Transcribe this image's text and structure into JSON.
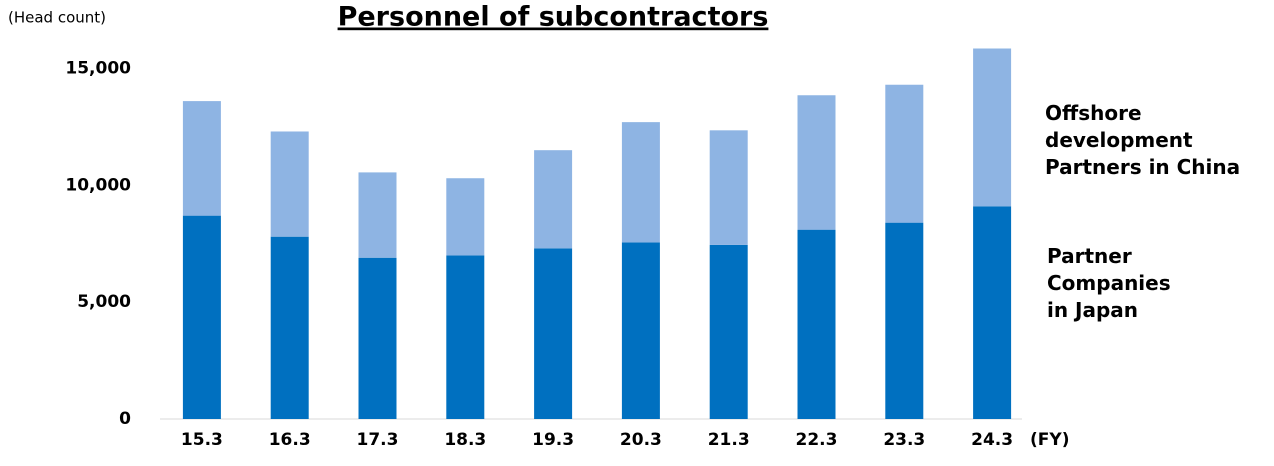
{
  "chart_data": {
    "type": "stacked_bar",
    "title": "Personnel of subcontractors",
    "y_label": "(Head count)",
    "x_label": "(FY)",
    "categories": [
      "15.3",
      "16.3",
      "17.3",
      "18.3",
      "19.3",
      "20.3",
      "21.3",
      "22.3",
      "23.3",
      "24.3"
    ],
    "series": [
      {
        "name": "Partner Companies in Japan",
        "color": "#0070c0",
        "values": [
          8700,
          7800,
          6900,
          7000,
          7300,
          7550,
          7450,
          8100,
          8400,
          9100
        ]
      },
      {
        "name": "Offshore development Partners in China",
        "color": "#8eb4e3",
        "values": [
          4900,
          4500,
          3650,
          3300,
          4200,
          5150,
          4900,
          5750,
          5900,
          6750
        ]
      }
    ],
    "ylim": [
      0,
      16000
    ],
    "yticks": [
      0,
      {
        "value": 5000,
        "label": "5,000"
      },
      {
        "value": 10000,
        "label": "10,000"
      },
      {
        "value": 15000,
        "label": "15,000"
      }
    ],
    "grid": false
  }
}
